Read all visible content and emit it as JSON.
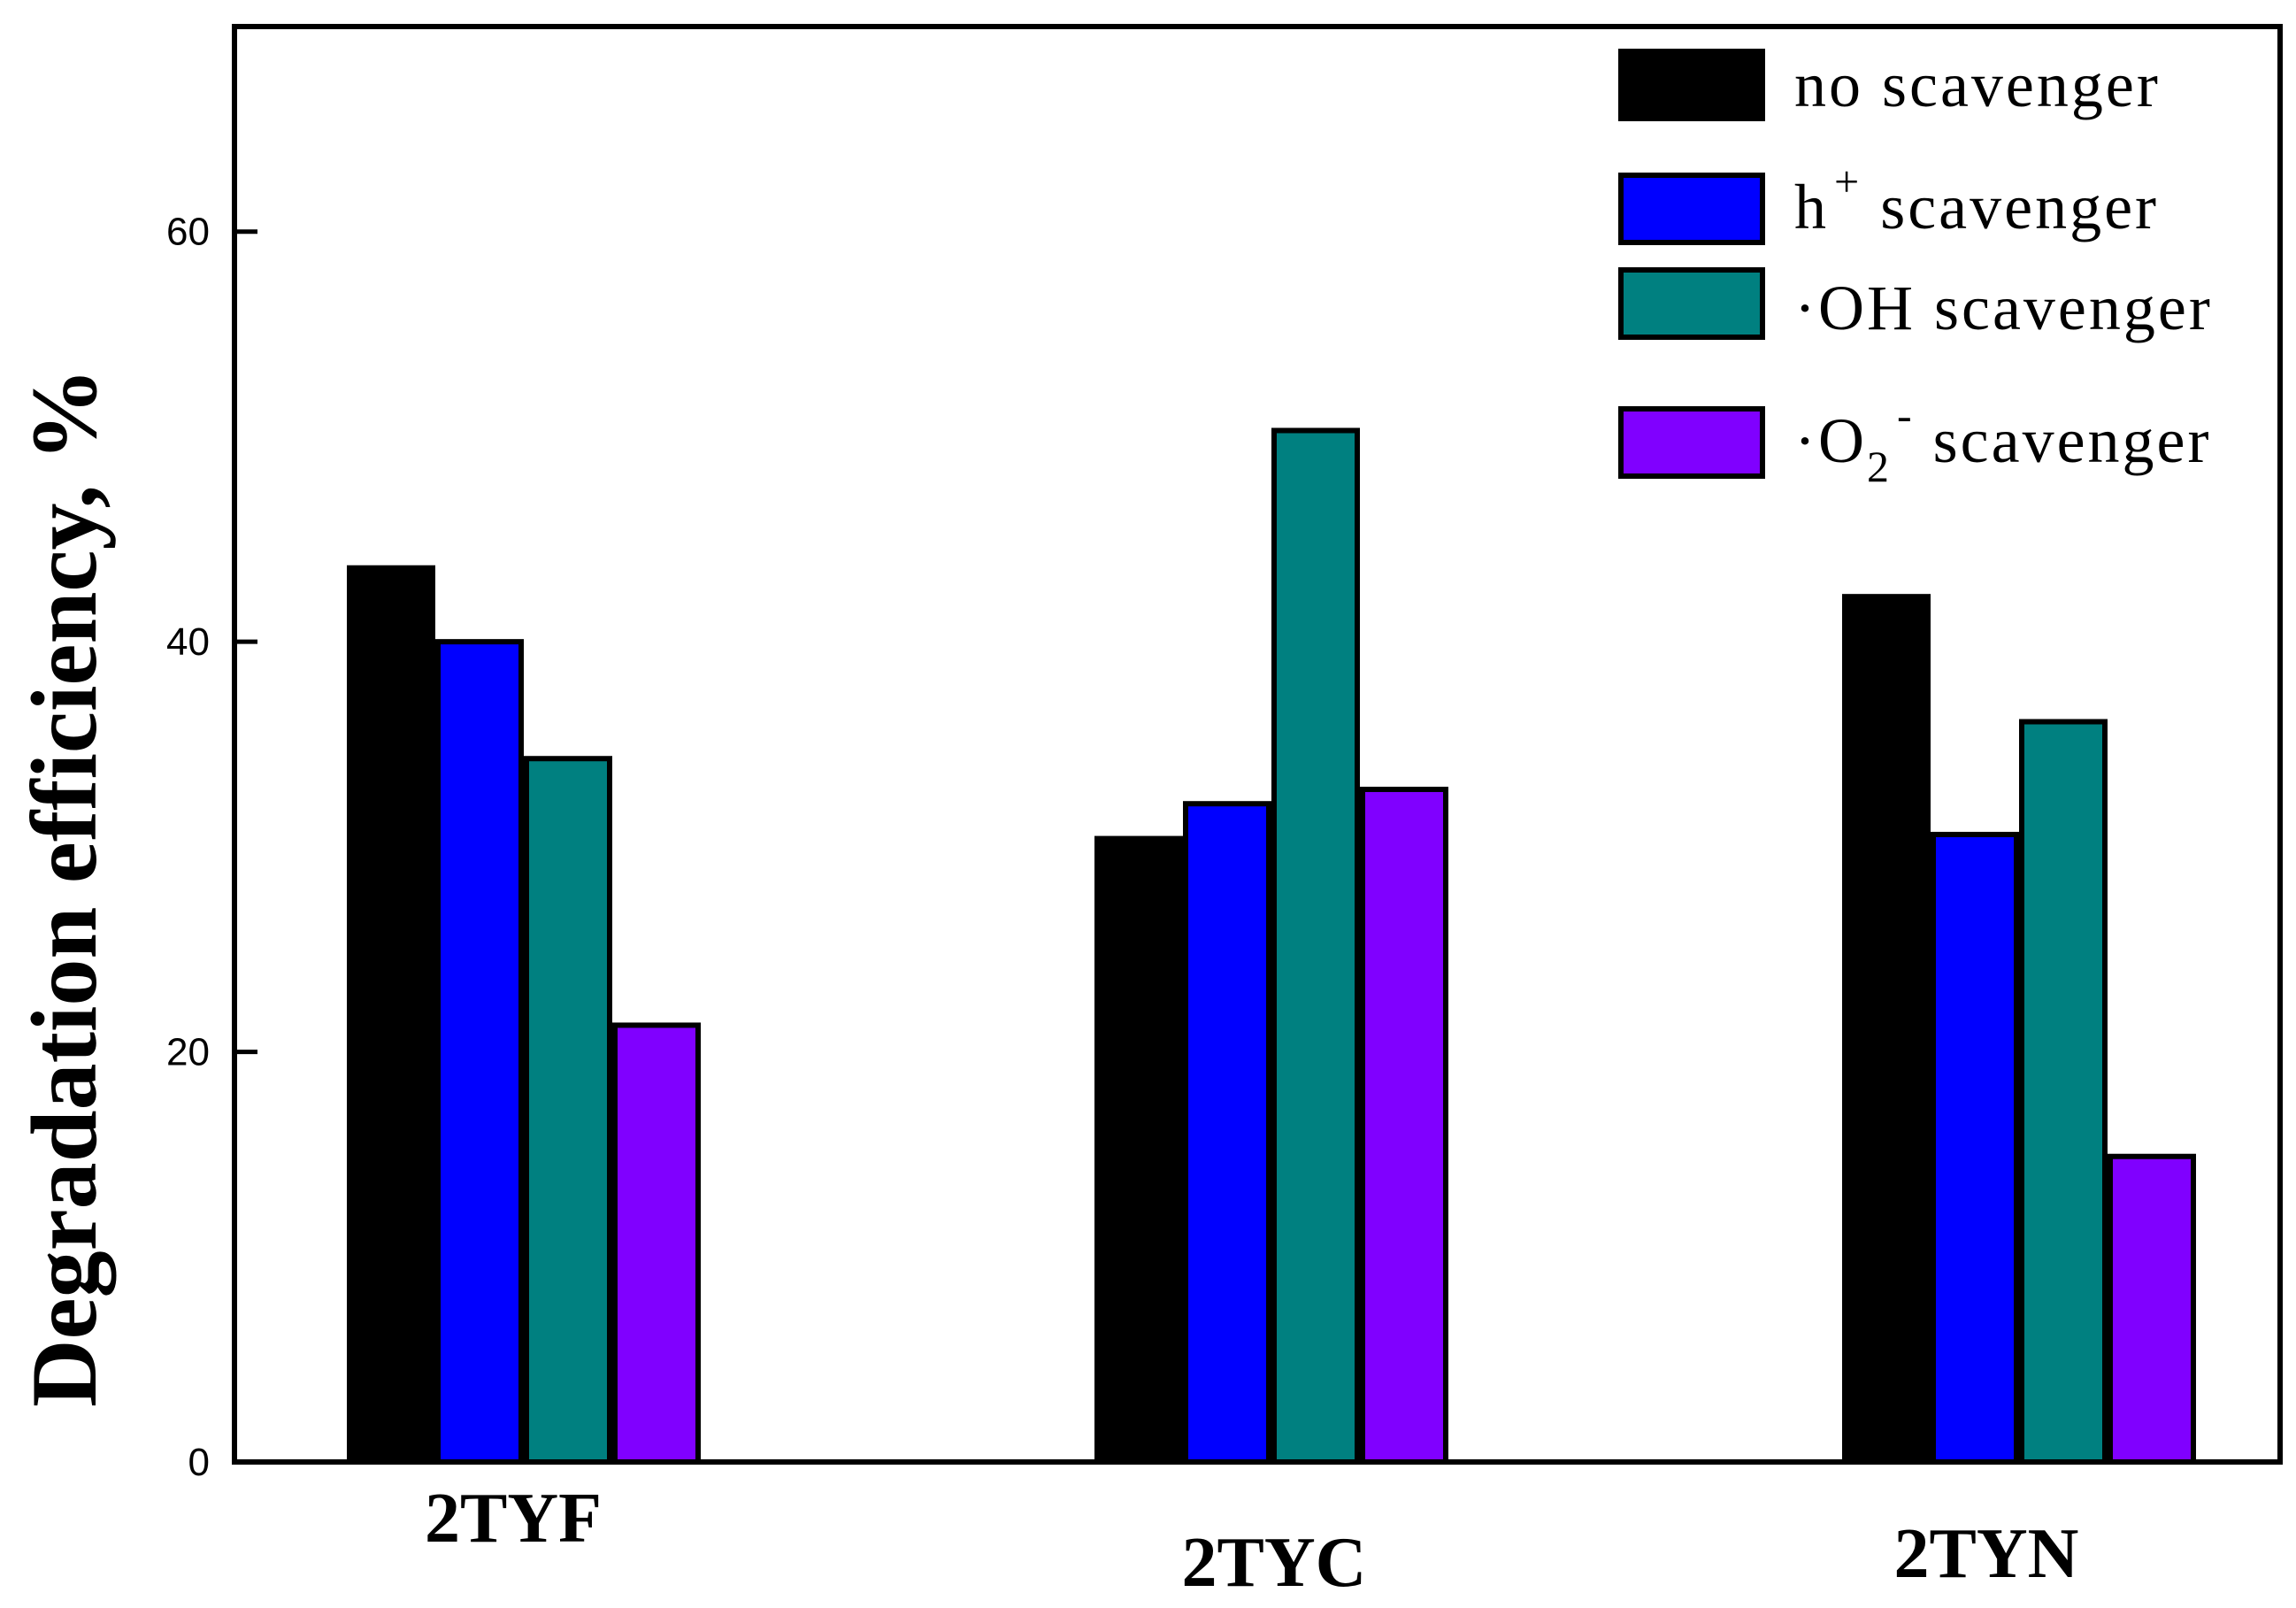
{
  "chart_data": {
    "type": "bar",
    "title": "",
    "xlabel": "",
    "ylabel": "Degradation efficiency, %",
    "ylim": [
      0,
      70
    ],
    "yticks": [
      "0",
      "20",
      "40",
      "60"
    ],
    "categories": [
      "2TYF",
      "2TYC",
      "2TYN"
    ],
    "series": [
      {
        "name": "no scavenger",
        "color": "#000000",
        "values": [
          43.6,
          30.4,
          42.2
        ]
      },
      {
        "name": "h+ scavenger",
        "color": "#0000ff",
        "values": [
          40.0,
          32.1,
          30.6
        ]
      },
      {
        "name": "·OH scavenger",
        "color": "#008080",
        "values": [
          34.3,
          50.3,
          36.1
        ]
      },
      {
        "name": "·O2- scavenger",
        "color": "#8000ff",
        "values": [
          21.3,
          32.8,
          14.9
        ]
      }
    ],
    "legend": {
      "placement": "top-right",
      "entries": [
        {
          "prefix": "no scavenger",
          "sub": "",
          "sup": "",
          "suffix": ""
        },
        {
          "prefix": "h",
          "sub": "",
          "sup": "+",
          "suffix": " scavenger"
        },
        {
          "prefix": "·OH scavenger",
          "sub": "",
          "sup": "",
          "suffix": ""
        },
        {
          "prefix": "·O",
          "sub": "2",
          "sup": "-",
          "suffix": " scavenger"
        }
      ]
    },
    "grid": false
  }
}
